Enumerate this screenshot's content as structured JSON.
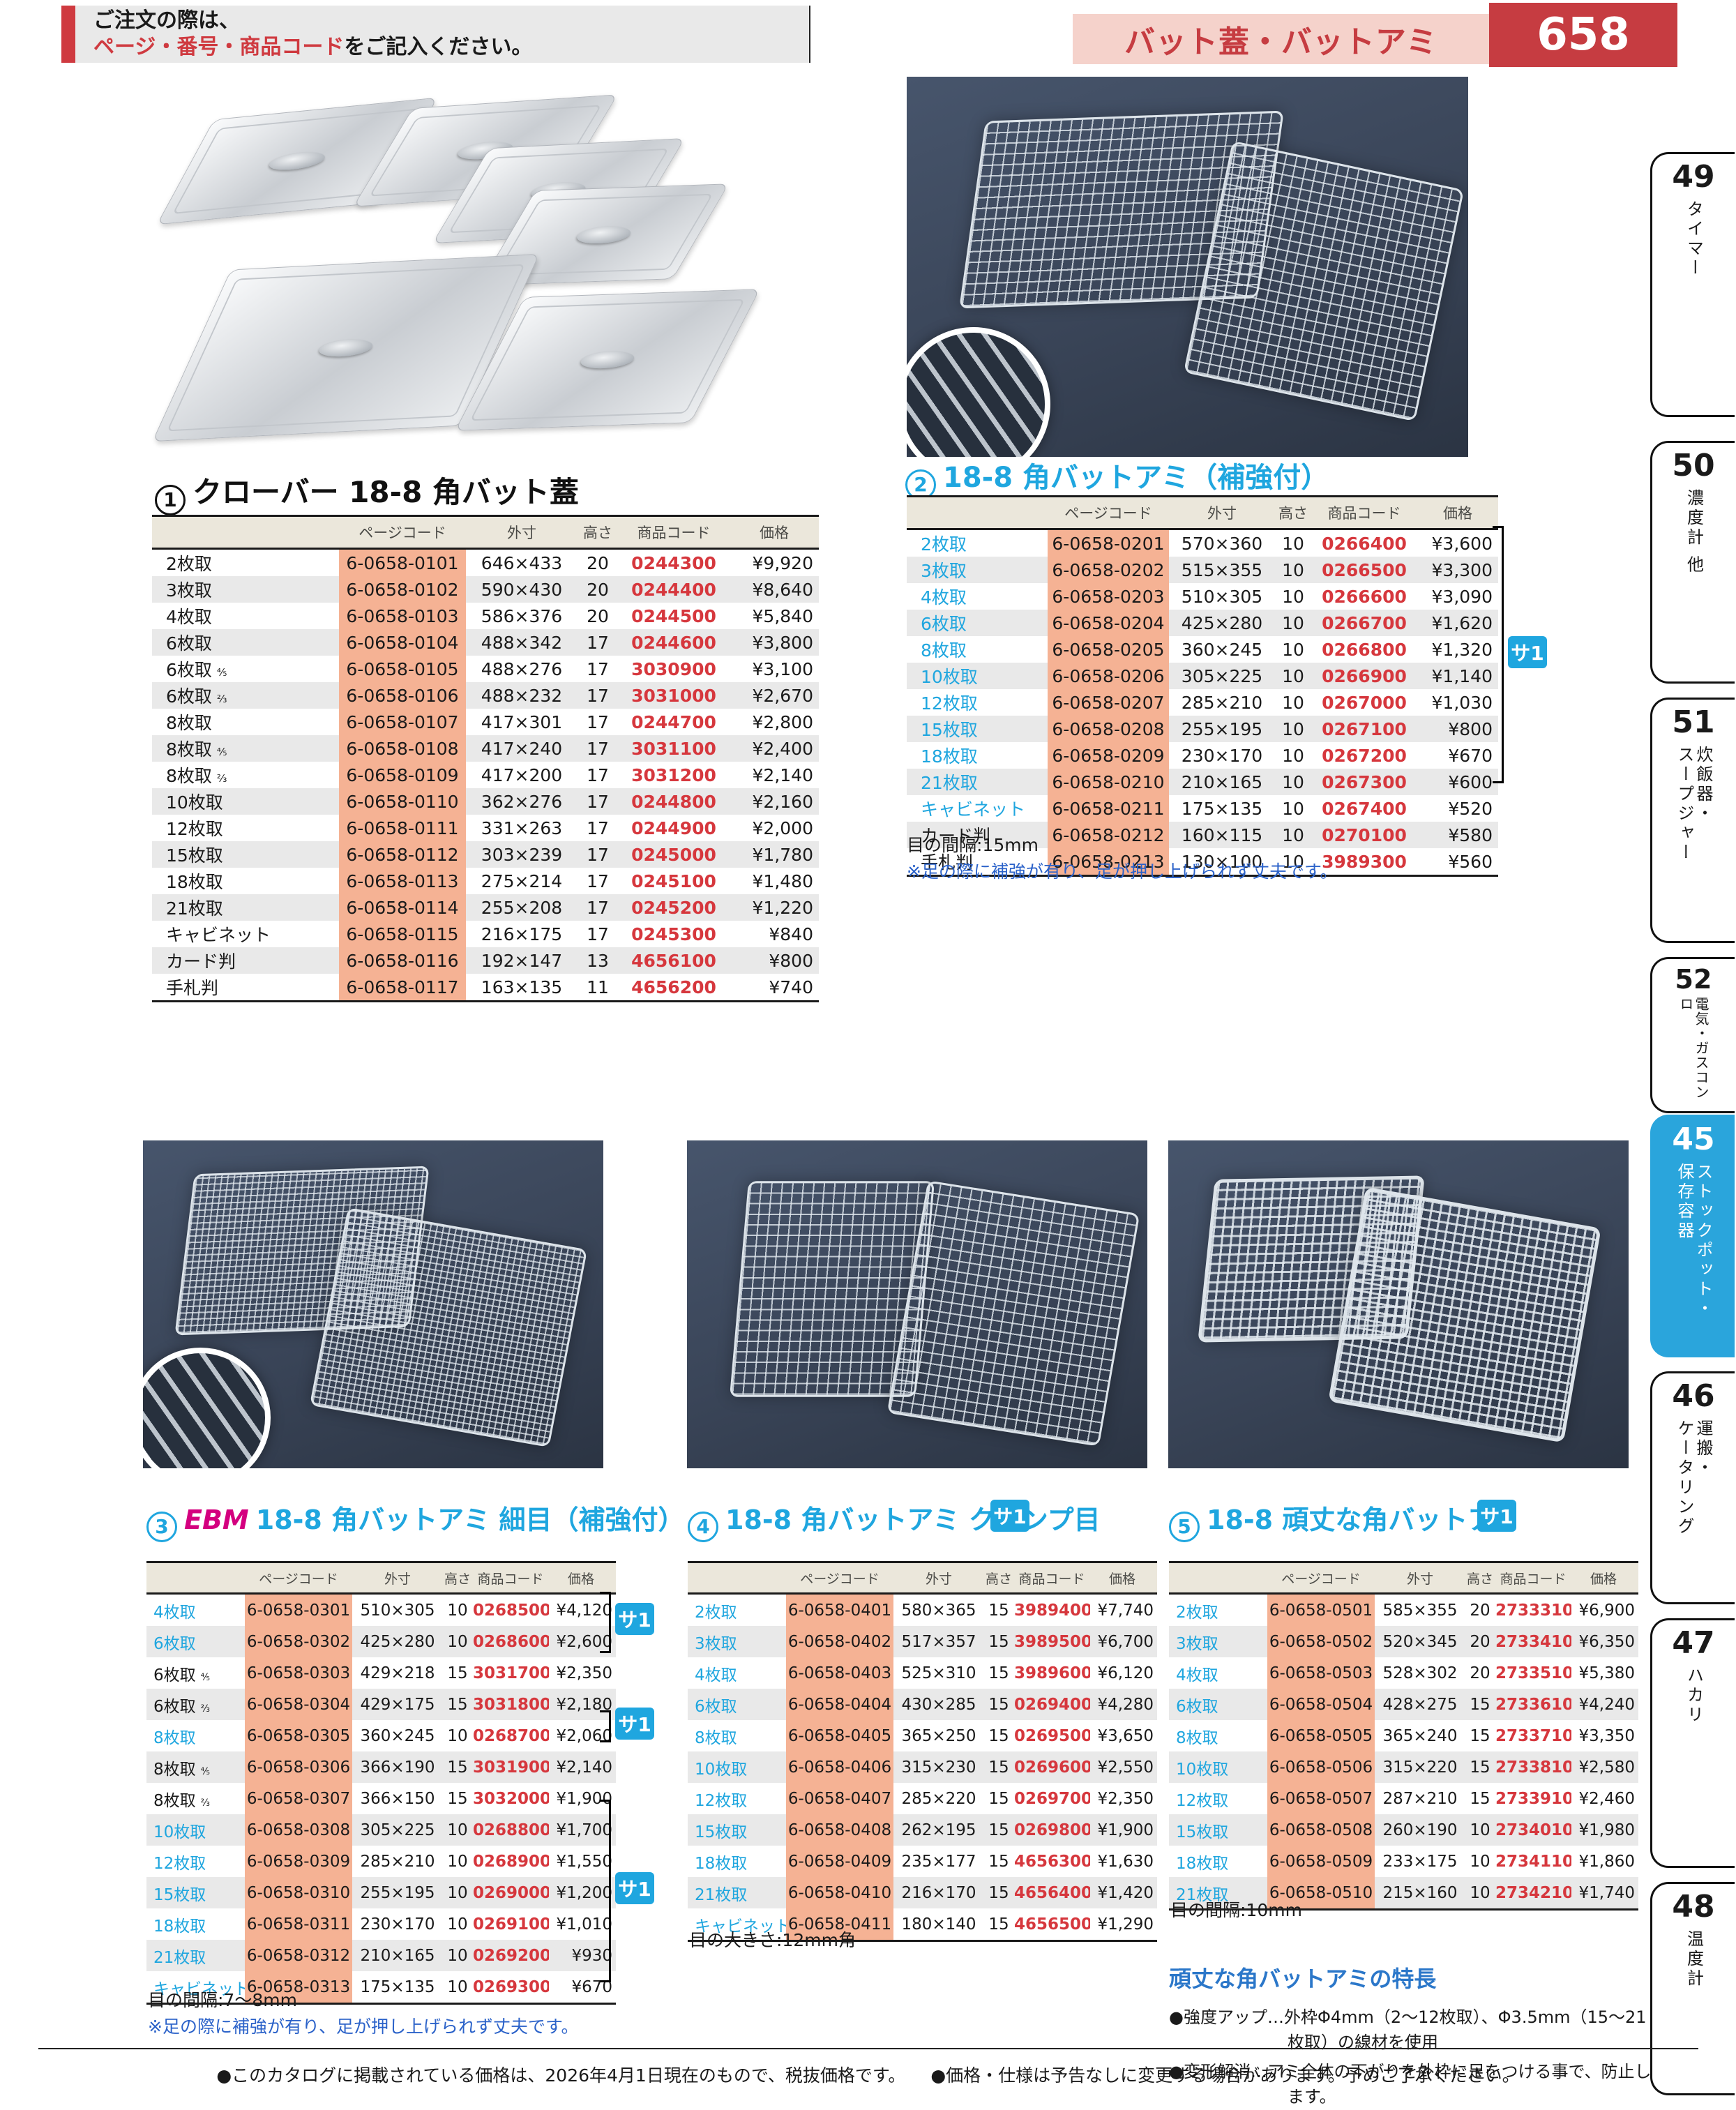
{
  "header": {
    "order_line1": "ご注文の際は、",
    "order_line2_red": "ページ・番号・商品コード",
    "order_line2_black": "をご記入ください。",
    "category_title": "バット蓋・バットアミ",
    "page_number": "658"
  },
  "columns": [
    "ページコード",
    "外寸",
    "高さ",
    "商品コード",
    "価格"
  ],
  "badge_label": "サ1",
  "sections": [
    {
      "circ": "1",
      "brand": "",
      "title": "クローバー 18-8 角バット蓋",
      "note1": "",
      "note2": "",
      "rows": [
        {
          "n": "2枚取",
          "f": "",
          "pc": "6-0658-0101",
          "sz": "646×433",
          "h": "20",
          "cd": "0244300",
          "pr": "¥9,920",
          "cy": false
        },
        {
          "n": "3枚取",
          "f": "",
          "pc": "6-0658-0102",
          "sz": "590×430",
          "h": "20",
          "cd": "0244400",
          "pr": "¥8,640",
          "cy": false
        },
        {
          "n": "4枚取",
          "f": "",
          "pc": "6-0658-0103",
          "sz": "586×376",
          "h": "20",
          "cd": "0244500",
          "pr": "¥5,840",
          "cy": false
        },
        {
          "n": "6枚取",
          "f": "",
          "pc": "6-0658-0104",
          "sz": "488×342",
          "h": "17",
          "cd": "0244600",
          "pr": "¥3,800",
          "cy": false
        },
        {
          "n": "6枚取",
          "f": "⅘",
          "pc": "6-0658-0105",
          "sz": "488×276",
          "h": "17",
          "cd": "3030900",
          "pr": "¥3,100",
          "cy": false
        },
        {
          "n": "6枚取",
          "f": "⅔",
          "pc": "6-0658-0106",
          "sz": "488×232",
          "h": "17",
          "cd": "3031000",
          "pr": "¥2,670",
          "cy": false
        },
        {
          "n": "8枚取",
          "f": "",
          "pc": "6-0658-0107",
          "sz": "417×301",
          "h": "17",
          "cd": "0244700",
          "pr": "¥2,800",
          "cy": false
        },
        {
          "n": "8枚取",
          "f": "⅘",
          "pc": "6-0658-0108",
          "sz": "417×240",
          "h": "17",
          "cd": "3031100",
          "pr": "¥2,400",
          "cy": false
        },
        {
          "n": "8枚取",
          "f": "⅔",
          "pc": "6-0658-0109",
          "sz": "417×200",
          "h": "17",
          "cd": "3031200",
          "pr": "¥2,140",
          "cy": false
        },
        {
          "n": "10枚取",
          "f": "",
          "pc": "6-0658-0110",
          "sz": "362×276",
          "h": "17",
          "cd": "0244800",
          "pr": "¥2,160",
          "cy": false
        },
        {
          "n": "12枚取",
          "f": "",
          "pc": "6-0658-0111",
          "sz": "331×263",
          "h": "17",
          "cd": "0244900",
          "pr": "¥2,000",
          "cy": false
        },
        {
          "n": "15枚取",
          "f": "",
          "pc": "6-0658-0112",
          "sz": "303×239",
          "h": "17",
          "cd": "0245000",
          "pr": "¥1,780",
          "cy": false
        },
        {
          "n": "18枚取",
          "f": "",
          "pc": "6-0658-0113",
          "sz": "275×214",
          "h": "17",
          "cd": "0245100",
          "pr": "¥1,480",
          "cy": false
        },
        {
          "n": "21枚取",
          "f": "",
          "pc": "6-0658-0114",
          "sz": "255×208",
          "h": "17",
          "cd": "0245200",
          "pr": "¥1,220",
          "cy": false
        },
        {
          "n": "キャビネット",
          "f": "",
          "pc": "6-0658-0115",
          "sz": "216×175",
          "h": "17",
          "cd": "0245300",
          "pr": "¥840",
          "cy": false
        },
        {
          "n": "カード判",
          "f": "",
          "pc": "6-0658-0116",
          "sz": "192×147",
          "h": "13",
          "cd": "4656100",
          "pr": "¥800",
          "cy": false
        },
        {
          "n": "手札判",
          "f": "",
          "pc": "6-0658-0117",
          "sz": "163×135",
          "h": "11",
          "cd": "4656200",
          "pr": "¥740",
          "cy": false
        }
      ]
    },
    {
      "circ": "2",
      "brand": "",
      "title": "18-8 角バットアミ（補強付）",
      "note1": "目の間隔:15mm",
      "note2": "※足の際に補強が有り、足が押し上げられず丈夫です。",
      "rows": [
        {
          "n": "2枚取",
          "f": "",
          "pc": "6-0658-0201",
          "sz": "570×360",
          "h": "10",
          "cd": "0266400",
          "pr": "¥3,600",
          "cy": true
        },
        {
          "n": "3枚取",
          "f": "",
          "pc": "6-0658-0202",
          "sz": "515×355",
          "h": "10",
          "cd": "0266500",
          "pr": "¥3,300",
          "cy": true
        },
        {
          "n": "4枚取",
          "f": "",
          "pc": "6-0658-0203",
          "sz": "510×305",
          "h": "10",
          "cd": "0266600",
          "pr": "¥3,090",
          "cy": true
        },
        {
          "n": "6枚取",
          "f": "",
          "pc": "6-0658-0204",
          "sz": "425×280",
          "h": "10",
          "cd": "0266700",
          "pr": "¥1,620",
          "cy": true
        },
        {
          "n": "8枚取",
          "f": "",
          "pc": "6-0658-0205",
          "sz": "360×245",
          "h": "10",
          "cd": "0266800",
          "pr": "¥1,320",
          "cy": true
        },
        {
          "n": "10枚取",
          "f": "",
          "pc": "6-0658-0206",
          "sz": "305×225",
          "h": "10",
          "cd": "0266900",
          "pr": "¥1,140",
          "cy": true
        },
        {
          "n": "12枚取",
          "f": "",
          "pc": "6-0658-0207",
          "sz": "285×210",
          "h": "10",
          "cd": "0267000",
          "pr": "¥1,030",
          "cy": true
        },
        {
          "n": "15枚取",
          "f": "",
          "pc": "6-0658-0208",
          "sz": "255×195",
          "h": "10",
          "cd": "0267100",
          "pr": "¥800",
          "cy": true
        },
        {
          "n": "18枚取",
          "f": "",
          "pc": "6-0658-0209",
          "sz": "230×170",
          "h": "10",
          "cd": "0267200",
          "pr": "¥670",
          "cy": true
        },
        {
          "n": "21枚取",
          "f": "",
          "pc": "6-0658-0210",
          "sz": "210×165",
          "h": "10",
          "cd": "0267300",
          "pr": "¥600",
          "cy": true
        },
        {
          "n": "キャビネット",
          "f": "",
          "pc": "6-0658-0211",
          "sz": "175×135",
          "h": "10",
          "cd": "0267400",
          "pr": "¥520",
          "cy": true
        },
        {
          "n": "カード判",
          "f": "",
          "pc": "6-0658-0212",
          "sz": "160×115",
          "h": "10",
          "cd": "0270100",
          "pr": "¥580",
          "cy": false
        },
        {
          "n": "手札判",
          "f": "",
          "pc": "6-0658-0213",
          "sz": "130×100",
          "h": "10",
          "cd": "3989300",
          "pr": "¥560",
          "cy": false
        }
      ]
    },
    {
      "circ": "3",
      "brand": "EBM",
      "title": "18-8 角バットアミ 細目（補強付）",
      "note1": "目の間隔:7～8mm",
      "note2": "※足の際に補強が有り、足が押し上げられず丈夫です。",
      "rows": [
        {
          "n": "4枚取",
          "f": "",
          "pc": "6-0658-0301",
          "sz": "510×305",
          "h": "10",
          "cd": "0268500",
          "pr": "¥4,120",
          "cy": true
        },
        {
          "n": "6枚取",
          "f": "",
          "pc": "6-0658-0302",
          "sz": "425×280",
          "h": "10",
          "cd": "0268600",
          "pr": "¥2,600",
          "cy": true
        },
        {
          "n": "6枚取",
          "f": "⅘",
          "pc": "6-0658-0303",
          "sz": "429×218",
          "h": "15",
          "cd": "3031700",
          "pr": "¥2,350",
          "cy": false
        },
        {
          "n": "6枚取",
          "f": "⅔",
          "pc": "6-0658-0304",
          "sz": "429×175",
          "h": "15",
          "cd": "3031800",
          "pr": "¥2,180",
          "cy": false
        },
        {
          "n": "8枚取",
          "f": "",
          "pc": "6-0658-0305",
          "sz": "360×245",
          "h": "10",
          "cd": "0268700",
          "pr": "¥2,060",
          "cy": true
        },
        {
          "n": "8枚取",
          "f": "⅘",
          "pc": "6-0658-0306",
          "sz": "366×190",
          "h": "15",
          "cd": "3031900",
          "pr": "¥2,140",
          "cy": false
        },
        {
          "n": "8枚取",
          "f": "⅔",
          "pc": "6-0658-0307",
          "sz": "366×150",
          "h": "15",
          "cd": "3032000",
          "pr": "¥1,900",
          "cy": false
        },
        {
          "n": "10枚取",
          "f": "",
          "pc": "6-0658-0308",
          "sz": "305×225",
          "h": "10",
          "cd": "0268800",
          "pr": "¥1,700",
          "cy": true
        },
        {
          "n": "12枚取",
          "f": "",
          "pc": "6-0658-0309",
          "sz": "285×210",
          "h": "10",
          "cd": "0268900",
          "pr": "¥1,550",
          "cy": true
        },
        {
          "n": "15枚取",
          "f": "",
          "pc": "6-0658-0310",
          "sz": "255×195",
          "h": "10",
          "cd": "0269000",
          "pr": "¥1,200",
          "cy": true
        },
        {
          "n": "18枚取",
          "f": "",
          "pc": "6-0658-0311",
          "sz": "230×170",
          "h": "10",
          "cd": "0269100",
          "pr": "¥1,010",
          "cy": true
        },
        {
          "n": "21枚取",
          "f": "",
          "pc": "6-0658-0312",
          "sz": "210×165",
          "h": "10",
          "cd": "0269200",
          "pr": "¥930",
          "cy": true
        },
        {
          "n": "キャビネット",
          "f": "",
          "pc": "6-0658-0313",
          "sz": "175×135",
          "h": "10",
          "cd": "0269300",
          "pr": "¥670",
          "cy": true
        }
      ]
    },
    {
      "circ": "4",
      "brand": "",
      "title": "18-8 角バットアミ クリンプ目",
      "note1": "目の大きさ:12mm角",
      "note2": "",
      "rows": [
        {
          "n": "2枚取",
          "f": "",
          "pc": "6-0658-0401",
          "sz": "580×365",
          "h": "15",
          "cd": "3989400",
          "pr": "¥7,740",
          "cy": true
        },
        {
          "n": "3枚取",
          "f": "",
          "pc": "6-0658-0402",
          "sz": "517×357",
          "h": "15",
          "cd": "3989500",
          "pr": "¥6,700",
          "cy": true
        },
        {
          "n": "4枚取",
          "f": "",
          "pc": "6-0658-0403",
          "sz": "525×310",
          "h": "15",
          "cd": "3989600",
          "pr": "¥6,120",
          "cy": true
        },
        {
          "n": "6枚取",
          "f": "",
          "pc": "6-0658-0404",
          "sz": "430×285",
          "h": "15",
          "cd": "0269400",
          "pr": "¥4,280",
          "cy": true
        },
        {
          "n": "8枚取",
          "f": "",
          "pc": "6-0658-0405",
          "sz": "365×250",
          "h": "15",
          "cd": "0269500",
          "pr": "¥3,650",
          "cy": true
        },
        {
          "n": "10枚取",
          "f": "",
          "pc": "6-0658-0406",
          "sz": "315×230",
          "h": "15",
          "cd": "0269600",
          "pr": "¥2,550",
          "cy": true
        },
        {
          "n": "12枚取",
          "f": "",
          "pc": "6-0658-0407",
          "sz": "285×220",
          "h": "15",
          "cd": "0269700",
          "pr": "¥2,350",
          "cy": true
        },
        {
          "n": "15枚取",
          "f": "",
          "pc": "6-0658-0408",
          "sz": "262×195",
          "h": "15",
          "cd": "0269800",
          "pr": "¥1,900",
          "cy": true
        },
        {
          "n": "18枚取",
          "f": "",
          "pc": "6-0658-0409",
          "sz": "235×177",
          "h": "15",
          "cd": "4656300",
          "pr": "¥1,630",
          "cy": true
        },
        {
          "n": "21枚取",
          "f": "",
          "pc": "6-0658-0410",
          "sz": "216×170",
          "h": "15",
          "cd": "4656400",
          "pr": "¥1,420",
          "cy": true
        },
        {
          "n": "キャビネット",
          "f": "",
          "pc": "6-0658-0411",
          "sz": "180×140",
          "h": "15",
          "cd": "4656500",
          "pr": "¥1,290",
          "cy": true
        }
      ]
    },
    {
      "circ": "5",
      "brand": "",
      "title": "18-8 頑丈な角バットアミ",
      "note1": "目の間隔:10mm",
      "note2": "",
      "rows": [
        {
          "n": "2枚取",
          "f": "",
          "pc": "6-0658-0501",
          "sz": "585×355",
          "h": "20",
          "cd": "2733310",
          "pr": "¥6,900",
          "cy": true
        },
        {
          "n": "3枚取",
          "f": "",
          "pc": "6-0658-0502",
          "sz": "520×345",
          "h": "20",
          "cd": "2733410",
          "pr": "¥6,350",
          "cy": true
        },
        {
          "n": "4枚取",
          "f": "",
          "pc": "6-0658-0503",
          "sz": "528×302",
          "h": "20",
          "cd": "2733510",
          "pr": "¥5,380",
          "cy": true
        },
        {
          "n": "6枚取",
          "f": "",
          "pc": "6-0658-0504",
          "sz": "428×275",
          "h": "15",
          "cd": "2733610",
          "pr": "¥4,240",
          "cy": true
        },
        {
          "n": "8枚取",
          "f": "",
          "pc": "6-0658-0505",
          "sz": "365×240",
          "h": "15",
          "cd": "2733710",
          "pr": "¥3,350",
          "cy": true
        },
        {
          "n": "10枚取",
          "f": "",
          "pc": "6-0658-0506",
          "sz": "315×220",
          "h": "15",
          "cd": "2733810",
          "pr": "¥2,580",
          "cy": true
        },
        {
          "n": "12枚取",
          "f": "",
          "pc": "6-0658-0507",
          "sz": "287×210",
          "h": "15",
          "cd": "2733910",
          "pr": "¥2,460",
          "cy": true
        },
        {
          "n": "15枚取",
          "f": "",
          "pc": "6-0658-0508",
          "sz": "260×190",
          "h": "10",
          "cd": "2734010",
          "pr": "¥1,980",
          "cy": true
        },
        {
          "n": "18枚取",
          "f": "",
          "pc": "6-0658-0509",
          "sz": "233×175",
          "h": "10",
          "cd": "2734110",
          "pr": "¥1,860",
          "cy": true
        },
        {
          "n": "21枚取",
          "f": "",
          "pc": "6-0658-0510",
          "sz": "215×160",
          "h": "10",
          "cd": "2734210",
          "pr": "¥1,740",
          "cy": true
        }
      ]
    }
  ],
  "feature": {
    "heading": "頑丈な角バットアミの特長",
    "b1": "●強度アップ…外枠Φ4mm（2～12枚取）、Φ3.5mm（15～21枚取）の線材を使用",
    "b2": "●変形解消…アミ全体の下がりを外枠に足をつける事で、防止します。"
  },
  "sidebar": [
    {
      "num": "49",
      "label": "タイマー",
      "active": false
    },
    {
      "num": "50",
      "label": "濃度計 他",
      "active": false
    },
    {
      "num": "51",
      "label": "炊飯器・\nスープジャー",
      "active": false
    },
    {
      "num": "52",
      "label": "電気・ガスコンロ",
      "active": false
    },
    {
      "num": "45",
      "label": "ストックポット・\n保存容器",
      "active": true
    },
    {
      "num": "46",
      "label": "運搬・\nケータリング",
      "active": false
    },
    {
      "num": "47",
      "label": "ハカリ",
      "active": false
    },
    {
      "num": "48",
      "label": "温度計",
      "active": false
    }
  ],
  "footer": {
    "note1": "●このカタログに掲載されている価格は、2026年4月1日現在のもので、税抜価格です。",
    "note2": "●価格・仕様は予告なしに変更する場合があります。予めご了承ください。"
  }
}
